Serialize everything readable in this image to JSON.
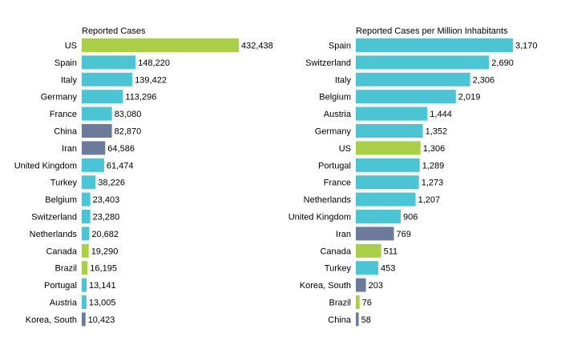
{
  "colors": {
    "default": "#4bc4d4",
    "highlight": "#a8cf45",
    "asia": "#6c7a9c"
  },
  "chart_data": [
    {
      "type": "bar",
      "orientation": "horizontal",
      "title": "Reported Cases",
      "xlim": [
        0,
        432438
      ],
      "categories": [
        "US",
        "Spain",
        "Italy",
        "Germany",
        "France",
        "China",
        "Iran",
        "United Kingdom",
        "Turkey",
        "Belgium",
        "Switzerland",
        "Netherlands",
        "Canada",
        "Brazil",
        "Portugal",
        "Austria",
        "Korea, South"
      ],
      "values": [
        432438,
        148220,
        139422,
        113296,
        83080,
        82870,
        64586,
        61474,
        38226,
        23403,
        23280,
        20682,
        19290,
        16195,
        13141,
        13005,
        10423
      ],
      "value_labels": [
        "432,438",
        "148,220",
        "139,422",
        "113,296",
        "83,080",
        "82,870",
        "64,586",
        "61,474",
        "38,226",
        "23,403",
        "23,280",
        "20,682",
        "19,290",
        "16,195",
        "13,141",
        "13,005",
        "10,423"
      ],
      "bar_colors": [
        "highlight",
        "default",
        "default",
        "default",
        "default",
        "asia",
        "asia",
        "default",
        "default",
        "default",
        "default",
        "default",
        "highlight",
        "highlight",
        "default",
        "default",
        "asia"
      ],
      "grid": false,
      "legend": "none"
    },
    {
      "type": "bar",
      "orientation": "horizontal",
      "title": "Reported Cases per Million Inhabitants",
      "xlim": [
        0,
        3170
      ],
      "categories": [
        "Spain",
        "Switzerland",
        "Italy",
        "Belgium",
        "Austria",
        "Germany",
        "US",
        "Portugal",
        "France",
        "Netherlands",
        "United Kingdom",
        "Iran",
        "Canada",
        "Turkey",
        "Korea, South",
        "Brazil",
        "China"
      ],
      "values": [
        3170,
        2690,
        2306,
        2019,
        1444,
        1352,
        1306,
        1289,
        1273,
        1207,
        906,
        769,
        511,
        453,
        203,
        76,
        58
      ],
      "value_labels": [
        "3,170",
        "2,690",
        "2,306",
        "2,019",
        "1,444",
        "1,352",
        "1,306",
        "1,289",
        "1,273",
        "1,207",
        "906",
        "769",
        "511",
        "453",
        "203",
        "76",
        "58"
      ],
      "bar_colors": [
        "default",
        "default",
        "default",
        "default",
        "default",
        "default",
        "highlight",
        "default",
        "default",
        "default",
        "default",
        "asia",
        "highlight",
        "default",
        "asia",
        "highlight",
        "asia"
      ],
      "grid": false,
      "legend": "none"
    }
  ]
}
